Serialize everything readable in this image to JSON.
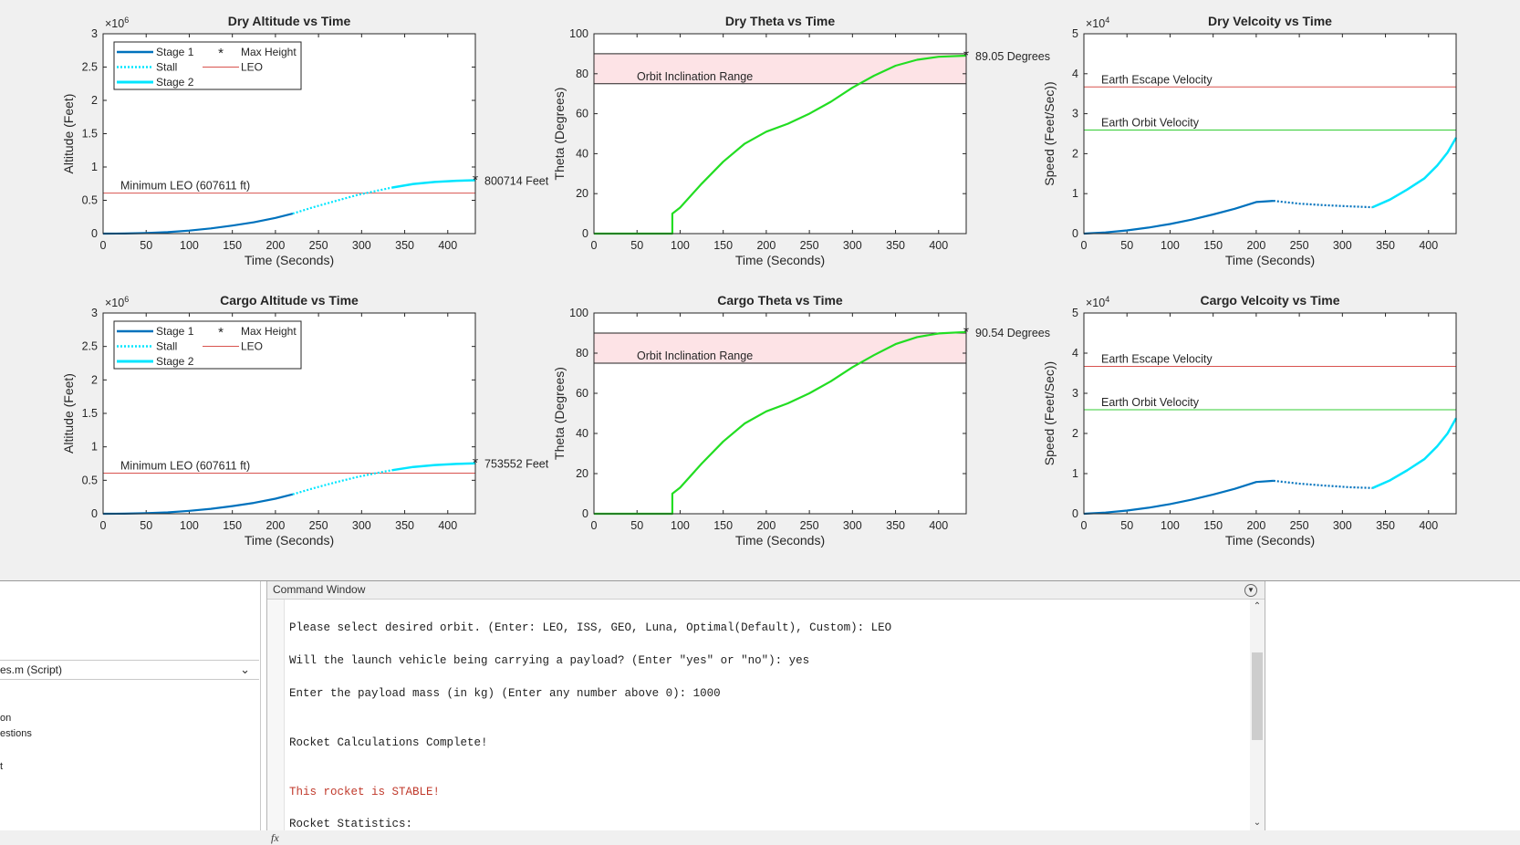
{
  "figure": {
    "charts": [
      {
        "id": "dry-altitude",
        "title": "Dry Altitude vs Time",
        "xlabel": "Time (Seconds)",
        "ylabel": "Altitude (Feet)",
        "xlim": [
          0,
          432
        ],
        "ylim": [
          0,
          3
        ],
        "xticks": [
          "0",
          "50",
          "100",
          "150",
          "200",
          "250",
          "300",
          "350",
          "400"
        ],
        "yticks": [
          "0",
          "0.5",
          "1",
          "1.5",
          "2",
          "2.5",
          "3"
        ],
        "exponent": "6",
        "legend": [
          {
            "label": "Stage 1",
            "style": "solid",
            "color": "#0072bd"
          },
          {
            "label": "Stall",
            "style": "dotted",
            "color": "#4dbeee"
          },
          {
            "label": "Stage 2",
            "style": "solid-bold",
            "color": "#00e5ff"
          },
          {
            "label": "Max Height",
            "style": "star",
            "color": "#ff0000"
          },
          {
            "label": "LEO",
            "style": "solid-thin",
            "color": "#d9534f"
          }
        ],
        "hlines": [
          {
            "y": 0.6076,
            "label": "Minimum LEO (607611 ft)",
            "color": "#d9534f"
          }
        ],
        "series": [
          {
            "name": "Stage 1",
            "color": "#0072bd",
            "width": 2.2,
            "dash": "",
            "points": [
              [
                0,
                0
              ],
              [
                25,
                0.002
              ],
              [
                50,
                0.008
              ],
              [
                75,
                0.022
              ],
              [
                100,
                0.045
              ],
              [
                125,
                0.078
              ],
              [
                150,
                0.12
              ],
              [
                175,
                0.17
              ],
              [
                200,
                0.235
              ],
              [
                220,
                0.3
              ]
            ]
          },
          {
            "name": "Stall",
            "color": "#00e5ff",
            "width": 2.2,
            "dash": "2,2",
            "points": [
              [
                220,
                0.3
              ],
              [
                245,
                0.4
              ],
              [
                270,
                0.49
              ],
              [
                295,
                0.58
              ],
              [
                320,
                0.65
              ],
              [
                335,
                0.69
              ]
            ]
          },
          {
            "name": "Stage 2",
            "color": "#00e5ff",
            "width": 2.5,
            "dash": "",
            "points": [
              [
                335,
                0.69
              ],
              [
                360,
                0.745
              ],
              [
                385,
                0.775
              ],
              [
                410,
                0.793
              ],
              [
                432,
                0.8007
              ]
            ]
          }
        ],
        "marker": {
          "x": 432,
          "y": 0.8007,
          "label": "800714 Feet"
        }
      },
      {
        "id": "dry-theta",
        "title": "Dry Theta vs Time",
        "xlabel": "Time (Seconds)",
        "ylabel": "Theta (Degrees)",
        "xlim": [
          0,
          432
        ],
        "ylim": [
          0,
          100
        ],
        "xticks": [
          "0",
          "50",
          "100",
          "150",
          "200",
          "250",
          "300",
          "350",
          "400"
        ],
        "yticks": [
          "0",
          "20",
          "40",
          "60",
          "80",
          "100"
        ],
        "band": {
          "y1": 75,
          "y2": 90,
          "label": "Orbit Inclination Range"
        },
        "series": [
          {
            "name": "Theta",
            "color": "#22dd22",
            "width": 2.2,
            "dash": "",
            "points": [
              [
                0,
                0
              ],
              [
                91,
                0
              ],
              [
                91,
                10
              ],
              [
                100,
                13
              ],
              [
                125,
                25
              ],
              [
                150,
                36
              ],
              [
                175,
                45
              ],
              [
                200,
                51
              ],
              [
                225,
                55
              ],
              [
                250,
                60
              ],
              [
                275,
                66
              ],
              [
                300,
                73
              ],
              [
                325,
                79
              ],
              [
                350,
                84
              ],
              [
                375,
                87
              ],
              [
                400,
                88.5
              ],
              [
                432,
                89.05
              ]
            ]
          }
        ],
        "marker": {
          "x": 432,
          "y": 89.05,
          "label": "89.05 Degrees"
        }
      },
      {
        "id": "dry-velocity",
        "title": "Dry Velcoity vs Time",
        "xlabel": "Time (Seconds)",
        "ylabel": "Speed (Feet/Sec))",
        "xlim": [
          0,
          432
        ],
        "ylim": [
          0,
          5
        ],
        "xticks": [
          "0",
          "50",
          "100",
          "150",
          "200",
          "250",
          "300",
          "350",
          "400"
        ],
        "yticks": [
          "0",
          "1",
          "2",
          "3",
          "4",
          "5"
        ],
        "exponent": "4",
        "hlines": [
          {
            "y": 3.67,
            "label": "Earth Escape Velocity",
            "color": "#d9534f"
          },
          {
            "y": 2.59,
            "label": "Earth Orbit Velocity",
            "color": "#33cc33"
          }
        ],
        "series": [
          {
            "name": "Stage 1",
            "color": "#0072bd",
            "width": 2.2,
            "dash": "",
            "points": [
              [
                0,
                0
              ],
              [
                25,
                0.03
              ],
              [
                50,
                0.08
              ],
              [
                75,
                0.15
              ],
              [
                100,
                0.24
              ],
              [
                125,
                0.35
              ],
              [
                150,
                0.48
              ],
              [
                175,
                0.62
              ],
              [
                200,
                0.79
              ],
              [
                220,
                0.82
              ]
            ]
          },
          {
            "name": "Stall",
            "color": "#0072bd",
            "width": 2.2,
            "dash": "2,2",
            "points": [
              [
                220,
                0.82
              ],
              [
                250,
                0.75
              ],
              [
                280,
                0.71
              ],
              [
                310,
                0.68
              ],
              [
                335,
                0.66
              ]
            ]
          },
          {
            "name": "Stage 2",
            "color": "#00e5ff",
            "width": 2.5,
            "dash": "",
            "points": [
              [
                335,
                0.66
              ],
              [
                355,
                0.85
              ],
              [
                375,
                1.1
              ],
              [
                395,
                1.38
              ],
              [
                410,
                1.7
              ],
              [
                422,
                2.03
              ],
              [
                432,
                2.4
              ]
            ]
          }
        ]
      },
      {
        "id": "cargo-altitude",
        "title": "Cargo Altitude vs Time",
        "xlabel": "Time (Seconds)",
        "ylabel": "Altitude (Feet)",
        "xlim": [
          0,
          432
        ],
        "ylim": [
          0,
          3
        ],
        "xticks": [
          "0",
          "50",
          "100",
          "150",
          "200",
          "250",
          "300",
          "350",
          "400"
        ],
        "yticks": [
          "0",
          "0.5",
          "1",
          "1.5",
          "2",
          "2.5",
          "3"
        ],
        "exponent": "6",
        "legend": [
          {
            "label": "Stage 1",
            "style": "solid",
            "color": "#0072bd"
          },
          {
            "label": "Stall",
            "style": "dotted",
            "color": "#4dbeee"
          },
          {
            "label": "Stage 2",
            "style": "solid-bold",
            "color": "#00e5ff"
          },
          {
            "label": "Max Height",
            "style": "star",
            "color": "#ff0000"
          },
          {
            "label": "LEO",
            "style": "solid-thin",
            "color": "#d9534f"
          }
        ],
        "hlines": [
          {
            "y": 0.6076,
            "label": "Minimum LEO (607611 ft)",
            "color": "#d9534f"
          }
        ],
        "series": [
          {
            "name": "Stage 1",
            "color": "#0072bd",
            "width": 2.2,
            "dash": "",
            "points": [
              [
                0,
                0
              ],
              [
                25,
                0.002
              ],
              [
                50,
                0.008
              ],
              [
                75,
                0.021
              ],
              [
                100,
                0.043
              ],
              [
                125,
                0.074
              ],
              [
                150,
                0.114
              ],
              [
                175,
                0.162
              ],
              [
                200,
                0.225
              ],
              [
                220,
                0.29
              ]
            ]
          },
          {
            "name": "Stall",
            "color": "#00e5ff",
            "width": 2.2,
            "dash": "2,2",
            "points": [
              [
                220,
                0.29
              ],
              [
                245,
                0.385
              ],
              [
                270,
                0.47
              ],
              [
                295,
                0.55
              ],
              [
                320,
                0.615
              ],
              [
                335,
                0.65
              ]
            ]
          },
          {
            "name": "Stage 2",
            "color": "#00e5ff",
            "width": 2.5,
            "dash": "",
            "points": [
              [
                335,
                0.65
              ],
              [
                360,
                0.7
              ],
              [
                385,
                0.728
              ],
              [
                410,
                0.745
              ],
              [
                432,
                0.7536
              ]
            ]
          }
        ],
        "marker": {
          "x": 432,
          "y": 0.7536,
          "label": "753552 Feet"
        }
      },
      {
        "id": "cargo-theta",
        "title": "Cargo Theta vs Time",
        "xlabel": "Time (Seconds)",
        "ylabel": "Theta (Degrees)",
        "xlim": [
          0,
          432
        ],
        "ylim": [
          0,
          100
        ],
        "xticks": [
          "0",
          "50",
          "100",
          "150",
          "200",
          "250",
          "300",
          "350",
          "400"
        ],
        "yticks": [
          "0",
          "20",
          "40",
          "60",
          "80",
          "100"
        ],
        "band": {
          "y1": 75,
          "y2": 90,
          "label": "Orbit Inclination Range"
        },
        "series": [
          {
            "name": "Theta",
            "color": "#22dd22",
            "width": 2.2,
            "dash": "",
            "points": [
              [
                0,
                0
              ],
              [
                91,
                0
              ],
              [
                91,
                10
              ],
              [
                100,
                13
              ],
              [
                125,
                25
              ],
              [
                150,
                36
              ],
              [
                175,
                45
              ],
              [
                200,
                51
              ],
              [
                225,
                55
              ],
              [
                250,
                60
              ],
              [
                275,
                66
              ],
              [
                300,
                73
              ],
              [
                325,
                79
              ],
              [
                350,
                84.5
              ],
              [
                375,
                88
              ],
              [
                400,
                89.8
              ],
              [
                432,
                90.54
              ]
            ]
          }
        ],
        "marker": {
          "x": 432,
          "y": 90.54,
          "label": "90.54 Degrees"
        }
      },
      {
        "id": "cargo-velocity",
        "title": "Cargo Velcoity vs Time",
        "xlabel": "Time (Seconds)",
        "ylabel": "Speed (Feet/Sec))",
        "xlim": [
          0,
          432
        ],
        "ylim": [
          0,
          5
        ],
        "xticks": [
          "0",
          "50",
          "100",
          "150",
          "200",
          "250",
          "300",
          "350",
          "400"
        ],
        "yticks": [
          "0",
          "1",
          "2",
          "3",
          "4",
          "5"
        ],
        "exponent": "4",
        "hlines": [
          {
            "y": 3.67,
            "label": "Earth Escape Velocity",
            "color": "#d9534f"
          },
          {
            "y": 2.59,
            "label": "Earth Orbit Velocity",
            "color": "#33cc33"
          }
        ],
        "series": [
          {
            "name": "Stage 1",
            "color": "#0072bd",
            "width": 2.2,
            "dash": "",
            "points": [
              [
                0,
                0
              ],
              [
                25,
                0.03
              ],
              [
                50,
                0.08
              ],
              [
                75,
                0.15
              ],
              [
                100,
                0.24
              ],
              [
                125,
                0.35
              ],
              [
                150,
                0.48
              ],
              [
                175,
                0.62
              ],
              [
                200,
                0.79
              ],
              [
                220,
                0.82
              ]
            ]
          },
          {
            "name": "Stall",
            "color": "#0072bd",
            "width": 2.2,
            "dash": "2,2",
            "points": [
              [
                220,
                0.82
              ],
              [
                250,
                0.75
              ],
              [
                280,
                0.7
              ],
              [
                310,
                0.66
              ],
              [
                335,
                0.64
              ]
            ]
          },
          {
            "name": "Stage 2",
            "color": "#00e5ff",
            "width": 2.5,
            "dash": "",
            "points": [
              [
                335,
                0.64
              ],
              [
                355,
                0.83
              ],
              [
                375,
                1.08
              ],
              [
                395,
                1.36
              ],
              [
                410,
                1.68
              ],
              [
                422,
                2.0
              ],
              [
                432,
                2.38
              ]
            ]
          }
        ]
      }
    ]
  },
  "left_panel": {
    "file_label": "es.m  (Script)",
    "items": [
      "on",
      "estions",
      "t"
    ]
  },
  "command_window": {
    "title": "Command Window",
    "lines": [
      {
        "text": "Please select desired orbit. (Enter: LEO, ISS, GEO, Luna, Optimal(Default), Custom): LEO",
        "color": "normal"
      },
      {
        "text": "Will the launch vehicle being carrying a payload? (Enter \"yes\" or \"no\"): yes",
        "color": "normal"
      },
      {
        "text": "Enter the payload mass (in kg) (Enter any number above 0): 1000",
        "color": "normal"
      },
      {
        "text": "Rocket Calculations Complete!",
        "color": "normal"
      },
      {
        "text": "This rocket is STABLE!",
        "color": "red"
      },
      {
        "text": "Rocket Statistics:",
        "color": "normal"
      }
    ],
    "prompt_icon": "fx"
  }
}
